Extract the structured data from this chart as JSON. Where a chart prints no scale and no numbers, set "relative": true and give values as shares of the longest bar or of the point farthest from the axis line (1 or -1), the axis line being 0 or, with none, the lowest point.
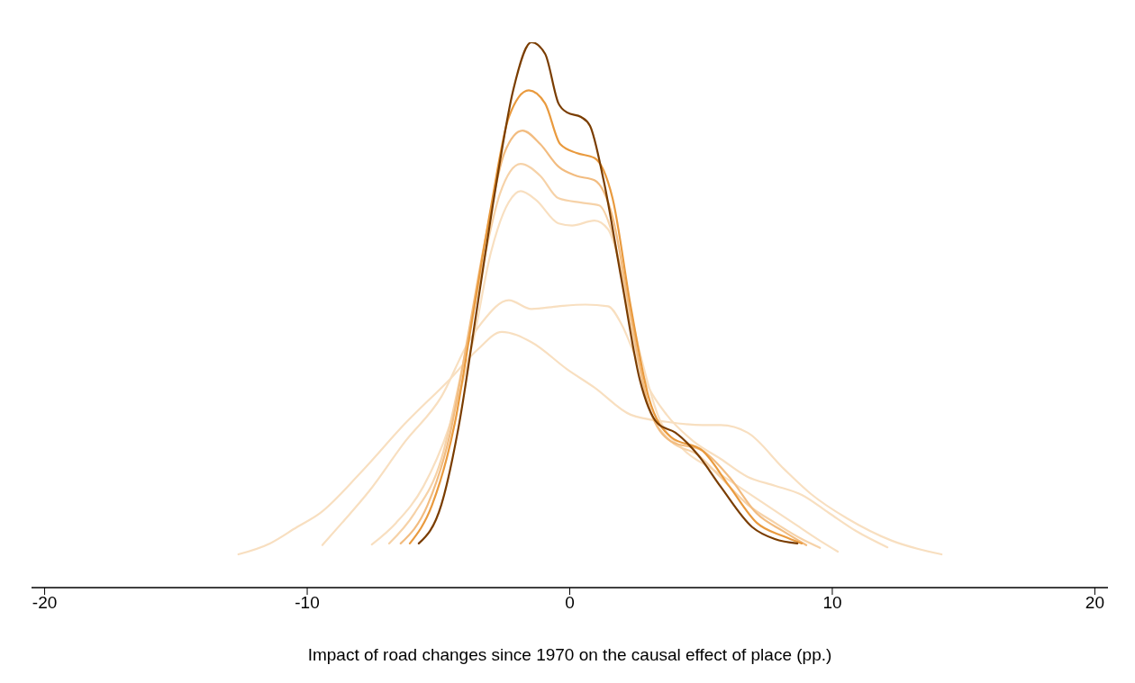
{
  "chart_data": {
    "type": "line",
    "relative": true,
    "xlabel": "Impact of road changes since 1970 on the causal effect of place (pp.)",
    "xlim": [
      -20.5,
      20.5
    ],
    "xticks": [
      -20,
      -10,
      0,
      10,
      20
    ],
    "grid": false,
    "legend": false,
    "marker": "none",
    "line_style": "solid",
    "series": [
      {
        "color": "#f8dfc0",
        "x": [
          -12.62,
          -11.42,
          -10.39,
          -9.53,
          -7.98,
          -6.27,
          -4.55,
          -3.52,
          -2.59,
          -1.46,
          -0.09,
          0.94,
          2.32,
          3.69,
          5.06,
          5.75,
          6.78,
          8.15,
          9.18,
          10.56,
          12.27,
          14.16
        ],
        "values": [
          0.061,
          0.081,
          0.111,
          0.136,
          0.21,
          0.301,
          0.383,
          0.436,
          0.469,
          0.45,
          0.4,
          0.367,
          0.317,
          0.304,
          0.298,
          0.298,
          0.284,
          0.218,
          0.172,
          0.127,
          0.086,
          0.061
        ]
      },
      {
        "color": "#f8dfc0",
        "x": [
          -9.42,
          -8.67,
          -7.64,
          -6.27,
          -4.89,
          -3.86,
          -3.35,
          -2.32,
          -1.46,
          -0.43,
          0.6,
          1.46,
          1.97,
          2.49,
          3.0,
          3.69,
          4.72,
          5.75,
          6.78,
          7.81,
          8.84,
          9.87,
          10.9,
          12.1
        ],
        "values": [
          0.078,
          0.119,
          0.177,
          0.268,
          0.35,
          0.45,
          0.486,
          0.527,
          0.511,
          0.516,
          0.519,
          0.516,
          0.483,
          0.425,
          0.367,
          0.317,
          0.268,
          0.236,
          0.203,
          0.187,
          0.17,
          0.137,
          0.104,
          0.074
        ]
      },
      {
        "color": "#f8dfc0",
        "x": [
          -7.54,
          -6.61,
          -5.58,
          -4.55,
          -3.69,
          -3.0,
          -2.32,
          -1.87,
          -1.29,
          -0.43,
          0.09,
          0.94,
          1.46,
          1.97,
          2.66,
          3.35,
          4.38,
          5.41,
          6.44,
          7.47,
          8.5,
          9.53,
          10.21
        ],
        "values": [
          0.079,
          0.119,
          0.185,
          0.301,
          0.45,
          0.615,
          0.707,
          0.727,
          0.711,
          0.668,
          0.664,
          0.673,
          0.657,
          0.582,
          0.433,
          0.317,
          0.251,
          0.218,
          0.185,
          0.152,
          0.119,
          0.086,
          0.066
        ]
      },
      {
        "color": "#f6d2a8",
        "x": [
          -6.88,
          -5.92,
          -4.89,
          -4.03,
          -3.35,
          -2.66,
          -1.87,
          -1.12,
          -0.43,
          0.43,
          1.12,
          1.63,
          2.32,
          3.0,
          3.86,
          4.89,
          5.75,
          6.78,
          7.81,
          8.84,
          9.53
        ],
        "values": [
          0.081,
          0.136,
          0.236,
          0.418,
          0.582,
          0.722,
          0.777,
          0.755,
          0.714,
          0.706,
          0.701,
          0.648,
          0.483,
          0.334,
          0.268,
          0.243,
          0.202,
          0.152,
          0.119,
          0.089,
          0.073
        ]
      },
      {
        "color": "#f2bc80",
        "x": [
          -6.44,
          -5.41,
          -4.55,
          -3.86,
          -3.18,
          -2.49,
          -1.8,
          -1.12,
          -0.43,
          0.26,
          0.94,
          1.63,
          2.32,
          3.0,
          3.86,
          5.06,
          6.09,
          7.12,
          8.15,
          9.01
        ],
        "values": [
          0.081,
          0.152,
          0.284,
          0.466,
          0.648,
          0.797,
          0.838,
          0.813,
          0.772,
          0.755,
          0.747,
          0.68,
          0.499,
          0.334,
          0.268,
          0.251,
          0.202,
          0.136,
          0.103,
          0.078
        ]
      },
      {
        "color": "#e99a3e",
        "x": [
          -6.09,
          -5.24,
          -4.38,
          -3.69,
          -3.0,
          -2.32,
          -1.56,
          -0.94,
          -0.36,
          0.26,
          0.94,
          1.63,
          2.32,
          3.0,
          3.86,
          5.06,
          6.09,
          7.12,
          8.15,
          8.84
        ],
        "values": [
          0.081,
          0.152,
          0.301,
          0.499,
          0.698,
          0.863,
          0.912,
          0.888,
          0.813,
          0.797,
          0.788,
          0.714,
          0.516,
          0.35,
          0.276,
          0.251,
          0.185,
          0.119,
          0.094,
          0.081
        ]
      },
      {
        "color": "#7a3d00",
        "x": [
          -5.75,
          -4.89,
          -4.21,
          -3.52,
          -2.83,
          -2.15,
          -1.46,
          -0.94,
          -0.43,
          -0.09,
          0.43,
          0.77,
          1.29,
          1.97,
          2.66,
          3.35,
          4.03,
          4.89,
          5.75,
          6.95,
          7.81,
          8.67
        ],
        "values": [
          0.081,
          0.152,
          0.301,
          0.516,
          0.731,
          0.913,
          1,
          0.979,
          0.888,
          0.871,
          0.863,
          0.847,
          0.747,
          0.565,
          0.383,
          0.301,
          0.284,
          0.243,
          0.185,
          0.111,
          0.089,
          0.081
        ]
      }
    ]
  }
}
